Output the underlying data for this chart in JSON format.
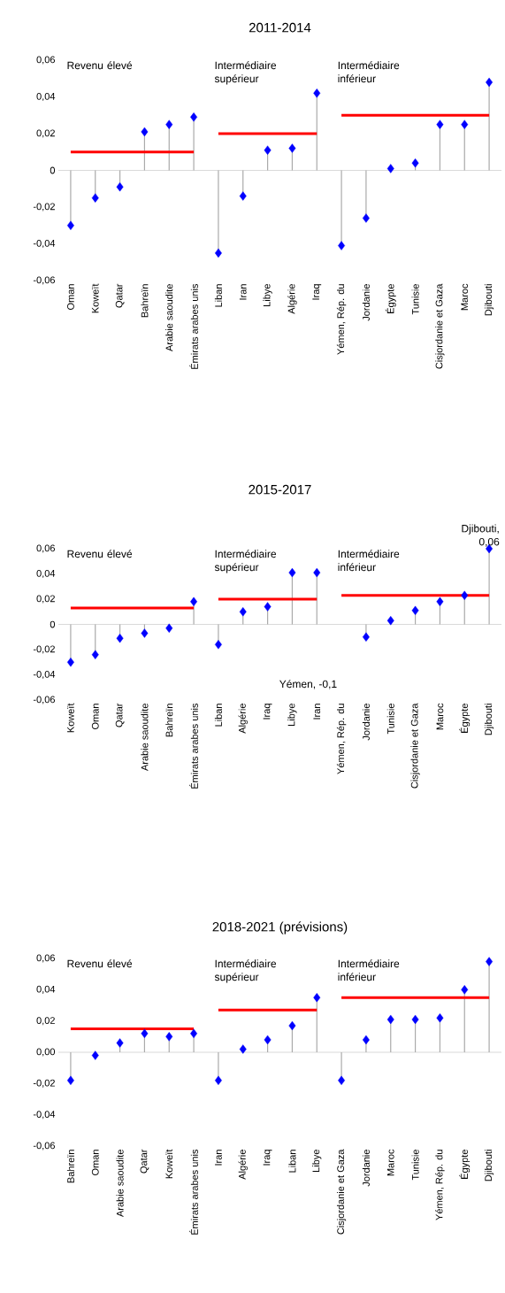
{
  "chart_data": [
    {
      "type": "lollipop",
      "title": "2011-2014",
      "categories": [
        "Oman",
        "Koweït",
        "Qatar",
        "Bahreïn",
        "Arabie saoudite",
        "Émirats arabes unis",
        "Liban",
        "Iran",
        "Libye",
        "Algérie",
        "Iraq",
        "Yémen, Rép. du",
        "Jordanie",
        "Égypte",
        "Tunisie",
        "Cisjordanie et Gaza",
        "Maroc",
        "Djibouti"
      ],
      "series": [
        {
          "color": "#0000ff",
          "marker": "diamond",
          "values": [
            -0.03,
            -0.015,
            -0.009,
            0.021,
            0.025,
            0.029,
            -0.045,
            -0.014,
            0.011,
            0.012,
            0.042,
            -0.041,
            -0.026,
            0.001,
            0.004,
            0.025,
            0.025,
            0.048
          ]
        },
        {
          "type": "line",
          "color": "#ff0000",
          "marker": "none",
          "values": [
            0.01,
            0.01,
            0.01,
            0.01,
            0.01,
            0.01,
            null,
            null,
            null,
            null,
            null,
            null,
            null,
            null,
            null,
            null,
            null,
            null
          ]
        },
        {
          "type": "line",
          "color": "#ff0000",
          "marker": "none",
          "values": [
            null,
            null,
            null,
            null,
            null,
            null,
            0.02,
            0.02,
            0.02,
            0.02,
            0.02,
            null,
            null,
            null,
            null,
            null,
            null,
            null
          ]
        },
        {
          "type": "line",
          "color": "#ff0000",
          "marker": "none",
          "values": [
            null,
            null,
            null,
            null,
            null,
            null,
            null,
            null,
            null,
            null,
            null,
            0.03,
            0.03,
            0.03,
            0.03,
            0.03,
            0.03,
            0.03
          ]
        }
      ],
      "annotations": [
        "Revenu élevé",
        "Intermédiaire supérieur",
        "Intermédiaire inférieur"
      ],
      "ylim": [
        -0.06,
        0.06
      ],
      "yticks": [
        {
          "value": -0.06,
          "label": "-0,06"
        },
        {
          "value": -0.04,
          "label": "-0,04"
        },
        {
          "value": -0.02,
          "label": "-0,02"
        },
        0,
        {
          "value": 0.02,
          "label": "0,02"
        },
        {
          "value": 0.04,
          "label": "0,04"
        },
        {
          "value": 0.06,
          "label": "0,06"
        }
      ]
    },
    {
      "type": "lollipop",
      "title": "2015-2017",
      "categories": [
        "Koweït",
        "Oman",
        "Qatar",
        "Arabie saoudite",
        "Bahreïn",
        "Émirats arabes unis",
        "Liban",
        "Algérie",
        "Iraq",
        "Libye",
        "Iran",
        "Yémen, Rép. du",
        "Jordanie",
        "Tunisie",
        "Cisjordanie et Gaza",
        "Maroc",
        "Égypte",
        "Djibouti"
      ],
      "series": [
        {
          "color": "#0000ff",
          "marker": "diamond",
          "values": [
            -0.03,
            -0.024,
            -0.011,
            -0.007,
            -0.003,
            0.018,
            -0.016,
            0.01,
            0.014,
            0.041,
            0.041,
            null,
            -0.01,
            0.003,
            0.011,
            0.018,
            0.023,
            0.06
          ]
        },
        {
          "type": "line",
          "color": "#ff0000",
          "marker": "none",
          "values": [
            0.013,
            0.013,
            0.013,
            0.013,
            0.013,
            0.013,
            null,
            null,
            null,
            null,
            null,
            null,
            null,
            null,
            null,
            null,
            null,
            null
          ]
        },
        {
          "type": "line",
          "color": "#ff0000",
          "marker": "none",
          "values": [
            null,
            null,
            null,
            null,
            null,
            null,
            0.02,
            0.02,
            0.02,
            0.02,
            0.02,
            null,
            null,
            null,
            null,
            null,
            null,
            null
          ]
        },
        {
          "type": "line",
          "color": "#ff0000",
          "marker": "none",
          "values": [
            null,
            null,
            null,
            null,
            null,
            null,
            null,
            null,
            null,
            null,
            null,
            0.023,
            0.023,
            0.023,
            0.023,
            0.023,
            0.023,
            0.023
          ]
        }
      ],
      "ylim": [
        -0.06,
        0.06
      ],
      "yticks": [
        {
          "value": -0.06,
          "label": "-0,06"
        },
        {
          "value": -0.04,
          "label": "-0,04"
        },
        {
          "value": -0.02,
          "label": "-0,02"
        },
        0,
        {
          "value": 0.02,
          "label": "0,02"
        },
        {
          "value": 0.04,
          "label": "0,04"
        },
        {
          "value": 0.06,
          "label": "0,06"
        }
      ],
      "annotations": [
        "Revenu élevé",
        "Intermédiaire supérieur",
        "Intermédiaire inférieur",
        "Yémen, -0,1",
        {
          "text": "Djibouti, 0,06",
          "x": "Djibouti",
          "y": 0.06
        }
      ]
    },
    {
      "type": "lollipop",
      "title": "2018-2021 (prévisions)",
      "categories": [
        "Bahreïn",
        "Oman",
        "Arabie saoudite",
        "Qatar",
        "Koweït",
        "Émirats arabes unis",
        "Iran",
        "Algérie",
        "Iraq",
        "Liban",
        "Libye",
        "Cisjordanie et Gaza",
        "Jordanie",
        "Maroc",
        "Tunisie",
        "Yémen, Rép. du",
        "Égypte",
        "Djibouti"
      ],
      "series": [
        {
          "color": "#0000ff",
          "marker": "diamond",
          "values": [
            -0.018,
            -0.002,
            0.006,
            0.012,
            0.01,
            0.012,
            -0.018,
            0.002,
            0.008,
            0.017,
            0.035,
            -0.018,
            0.008,
            0.021,
            0.021,
            0.022,
            0.04,
            0.058
          ]
        },
        {
          "type": "line",
          "color": "#ff0000",
          "marker": "none",
          "values": [
            0.015,
            0.015,
            0.015,
            0.015,
            0.015,
            0.015,
            null,
            null,
            null,
            null,
            null,
            null,
            null,
            null,
            null,
            null,
            null,
            null
          ]
        },
        {
          "type": "line",
          "color": "#ff0000",
          "marker": "none",
          "values": [
            null,
            null,
            null,
            null,
            null,
            null,
            0.027,
            0.027,
            0.027,
            0.027,
            0.027,
            null,
            null,
            null,
            null,
            null,
            null,
            null
          ]
        },
        {
          "type": "line",
          "color": "#ff0000",
          "marker": "none",
          "values": [
            null,
            null,
            null,
            null,
            null,
            null,
            null,
            null,
            null,
            null,
            null,
            0.035,
            0.035,
            0.035,
            0.035,
            0.035,
            0.035,
            0.035
          ]
        }
      ],
      "annotations": [
        "Revenu élevé",
        "Intermédiaire supérieur",
        "Intermédiaire inférieur"
      ],
      "ylim": [
        -0.06,
        0.06
      ],
      "yticks": [
        {
          "value": -0.06,
          "label": "-0,06"
        },
        {
          "value": -0.04,
          "label": "-0,04"
        },
        {
          "value": -0.02,
          "label": "-0,02"
        },
        {
          "value": 0,
          "label": "0,00"
        },
        {
          "value": 0.02,
          "label": "0,02"
        },
        {
          "value": 0.04,
          "label": "0,04"
        },
        {
          "value": 0.06,
          "label": "0,06"
        }
      ]
    }
  ]
}
